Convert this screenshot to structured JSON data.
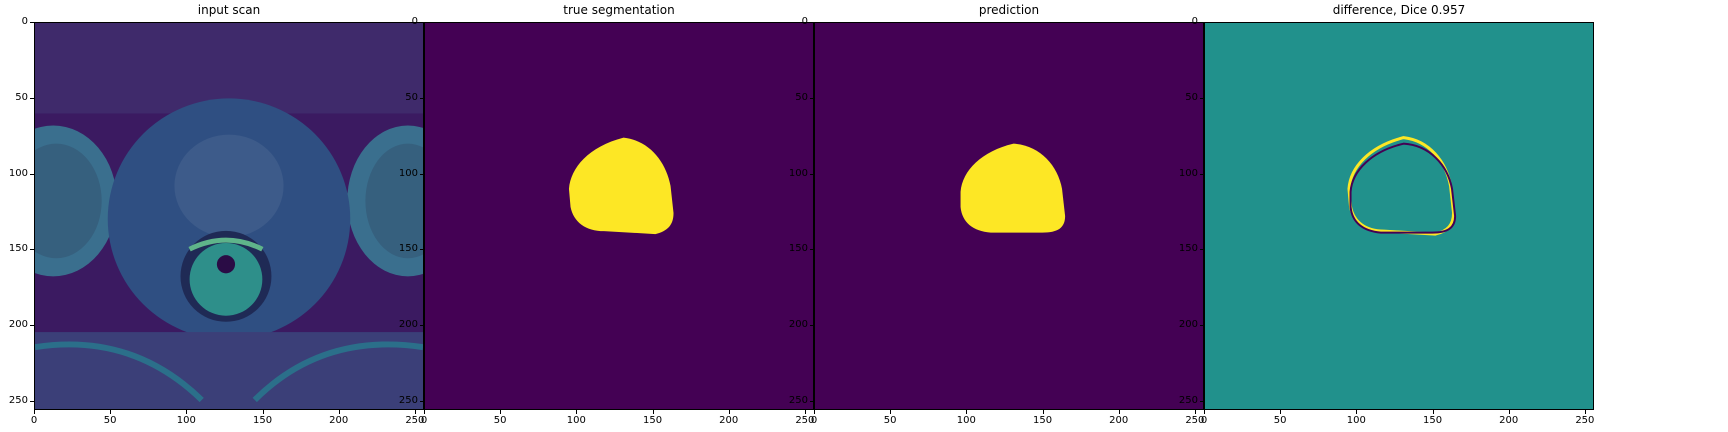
{
  "figure": {
    "colormap": "viridis",
    "colors": {
      "background_dark": "#440154",
      "mid": "#21918c",
      "bright": "#fde725",
      "scan_dark": "#3b1a61",
      "scan_mid": "#3a6e8f",
      "scan_light": "#5fb48a"
    },
    "axis_ticks": {
      "x": [
        "0",
        "50",
        "100",
        "150",
        "200",
        "250"
      ],
      "y": [
        "0",
        "50",
        "100",
        "150",
        "200",
        "250"
      ],
      "range": [
        0,
        256
      ]
    },
    "panels": [
      {
        "title": "input scan",
        "kind": "mri-scan"
      },
      {
        "title": "true segmentation",
        "kind": "mask-true"
      },
      {
        "title": "prediction",
        "kind": "mask-pred"
      },
      {
        "title": "difference, Dice 0.957",
        "kind": "difference"
      }
    ]
  }
}
